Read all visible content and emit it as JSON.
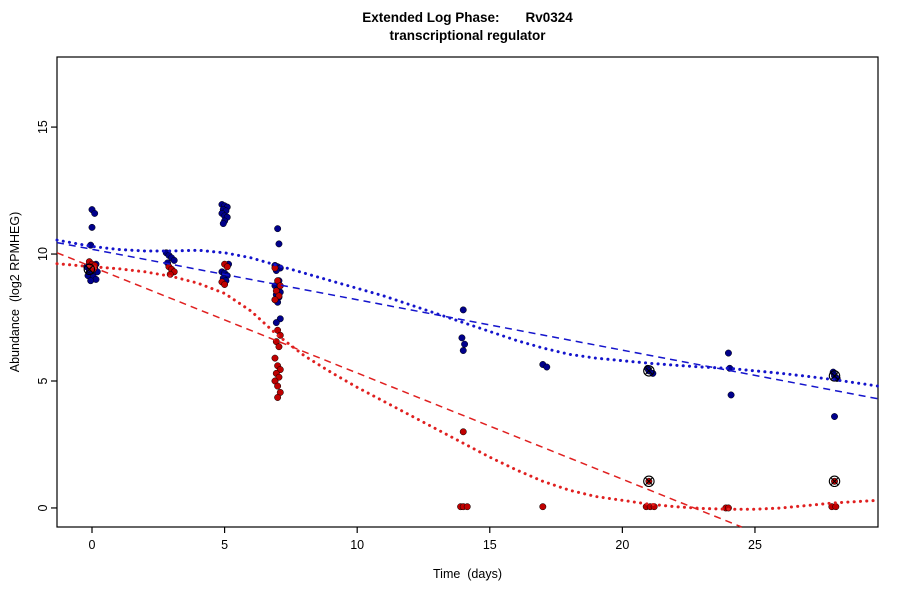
{
  "chart_data": {
    "type": "scatter",
    "title": {
      "prefix": "Extended Log Phase:",
      "gene": "Rv0324",
      "subtitle": "transcriptional regulator"
    },
    "xlabel": "Time  (days)",
    "ylabel": "Abundance  (log2 RPMHEG)",
    "x_ticks": [
      0,
      5,
      10,
      15,
      20,
      25
    ],
    "y_ticks": [
      0,
      5,
      10,
      15
    ],
    "xlim": [
      -1.32,
      29.64
    ],
    "ylim": [
      -0.75,
      17.76
    ],
    "grid": false,
    "legend": "none",
    "series": [
      {
        "name": "blue-series",
        "marker": "filled-circle",
        "color": "#00008B",
        "points": [
          [
            0,
            11.75
          ],
          [
            0.1,
            11.6
          ],
          [
            0,
            11.05
          ],
          [
            -0.05,
            10.35
          ],
          [
            0.15,
            9.6
          ],
          [
            -0.2,
            9.5
          ],
          [
            0,
            9.5
          ],
          [
            0.1,
            9.45
          ],
          [
            -0.1,
            9.35
          ],
          [
            0.2,
            9.3
          ],
          [
            0,
            9.25
          ],
          [
            -0.15,
            9.15
          ],
          [
            0.05,
            9.1
          ],
          [
            0.15,
            9.0
          ],
          [
            -0.05,
            8.95
          ],
          [
            2.8,
            10.05
          ],
          [
            2.9,
            9.95
          ],
          [
            3.0,
            9.85
          ],
          [
            3.1,
            9.75
          ],
          [
            2.85,
            9.65
          ],
          [
            4.9,
            11.95
          ],
          [
            5.0,
            11.9
          ],
          [
            5.1,
            11.85
          ],
          [
            4.95,
            11.75
          ],
          [
            5.05,
            11.7
          ],
          [
            4.9,
            11.6
          ],
          [
            5.0,
            11.5
          ],
          [
            5.1,
            11.45
          ],
          [
            5.0,
            11.3
          ],
          [
            4.95,
            11.2
          ],
          [
            5.15,
            9.6
          ],
          [
            4.9,
            9.3
          ],
          [
            5.0,
            9.25
          ],
          [
            5.1,
            9.15
          ],
          [
            4.95,
            9.05
          ],
          [
            5.05,
            8.95
          ],
          [
            7.0,
            11.0
          ],
          [
            7.05,
            10.4
          ],
          [
            6.9,
            9.55
          ],
          [
            7.0,
            9.5
          ],
          [
            7.1,
            9.45
          ],
          [
            6.95,
            9.35
          ],
          [
            7.05,
            8.95
          ],
          [
            6.9,
            8.75
          ],
          [
            7.0,
            8.6
          ],
          [
            7.1,
            8.5
          ],
          [
            6.95,
            8.4
          ],
          [
            7.05,
            8.3
          ],
          [
            6.9,
            8.2
          ],
          [
            7.0,
            8.1
          ],
          [
            7.1,
            7.45
          ],
          [
            6.95,
            7.3
          ],
          [
            14.0,
            7.8
          ],
          [
            13.95,
            6.7
          ],
          [
            14.05,
            6.45
          ],
          [
            14.0,
            6.2
          ],
          [
            17.0,
            5.65
          ],
          [
            17.15,
            5.55
          ],
          [
            20.95,
            5.5
          ],
          [
            21.0,
            5.4
          ],
          [
            21.15,
            5.3
          ],
          [
            24.0,
            6.1
          ],
          [
            24.05,
            5.5
          ],
          [
            24.1,
            4.45
          ],
          [
            27.95,
            5.35
          ],
          [
            28.0,
            5.2
          ],
          [
            28.1,
            5.1
          ],
          [
            28.0,
            3.6
          ]
        ]
      },
      {
        "name": "red-series",
        "marker": "filled-circle",
        "color": "#C00000",
        "points": [
          [
            -0.1,
            9.7
          ],
          [
            0.0,
            9.6
          ],
          [
            0.1,
            9.55
          ],
          [
            -0.05,
            9.45
          ],
          [
            0.05,
            9.4
          ],
          [
            2.9,
            9.5
          ],
          [
            3.0,
            9.4
          ],
          [
            3.1,
            9.3
          ],
          [
            2.95,
            9.2
          ],
          [
            5.0,
            9.6
          ],
          [
            5.1,
            9.5
          ],
          [
            4.9,
            8.9
          ],
          [
            5.0,
            8.8
          ],
          [
            6.9,
            9.45
          ],
          [
            7.0,
            8.95
          ],
          [
            7.1,
            8.75
          ],
          [
            6.95,
            8.55
          ],
          [
            7.05,
            8.35
          ],
          [
            6.9,
            8.2
          ],
          [
            7.0,
            7.0
          ],
          [
            7.1,
            6.8
          ],
          [
            6.95,
            6.55
          ],
          [
            7.05,
            6.35
          ],
          [
            6.9,
            5.9
          ],
          [
            7.0,
            5.6
          ],
          [
            7.1,
            5.45
          ],
          [
            6.95,
            5.3
          ],
          [
            7.05,
            5.15
          ],
          [
            6.9,
            5.0
          ],
          [
            7.0,
            4.8
          ],
          [
            7.1,
            4.55
          ],
          [
            7.0,
            4.35
          ],
          [
            14.0,
            3.0
          ],
          [
            13.9,
            0.05
          ],
          [
            14.0,
            0.05
          ],
          [
            14.15,
            0.05
          ],
          [
            17.0,
            0.05
          ],
          [
            21.0,
            1.05
          ],
          [
            20.9,
            0.05
          ],
          [
            21.05,
            0.05
          ],
          [
            21.2,
            0.05
          ],
          [
            23.9,
            0.0
          ],
          [
            24.0,
            0.0
          ],
          [
            28.0,
            1.05
          ],
          [
            27.9,
            0.05
          ],
          [
            28.05,
            0.05
          ]
        ]
      }
    ],
    "curves": [
      {
        "name": "blue-linear-trend",
        "style": "dashed",
        "color": "#1414CC",
        "points": [
          [
            -1.32,
            10.45
          ],
          [
            29.64,
            4.3
          ]
        ]
      },
      {
        "name": "blue-smooth-trend",
        "style": "dotted",
        "color": "#1414CC",
        "points": [
          [
            -1.32,
            10.55
          ],
          [
            0,
            10.3
          ],
          [
            1,
            10.18
          ],
          [
            2,
            10.12
          ],
          [
            3,
            10.12
          ],
          [
            4,
            10.15
          ],
          [
            5,
            10.05
          ],
          [
            6,
            9.85
          ],
          [
            7,
            9.55
          ],
          [
            8,
            9.25
          ],
          [
            9,
            8.95
          ],
          [
            10,
            8.65
          ],
          [
            11,
            8.35
          ],
          [
            12,
            8.0
          ],
          [
            13,
            7.65
          ],
          [
            14,
            7.3
          ],
          [
            15,
            6.95
          ],
          [
            16,
            6.6
          ],
          [
            17,
            6.3
          ],
          [
            18,
            6.05
          ],
          [
            19,
            5.9
          ],
          [
            20,
            5.8
          ],
          [
            21,
            5.7
          ],
          [
            22,
            5.62
          ],
          [
            23,
            5.55
          ],
          [
            24,
            5.5
          ],
          [
            25,
            5.4
          ],
          [
            26,
            5.3
          ],
          [
            27,
            5.18
          ],
          [
            28,
            5.05
          ],
          [
            29.64,
            4.8
          ]
        ]
      },
      {
        "name": "red-linear-trend",
        "style": "dashed",
        "color": "#E02020",
        "points": [
          [
            -1.32,
            10.05
          ],
          [
            24.5,
            -0.75
          ]
        ]
      },
      {
        "name": "red-smooth-trend",
        "style": "dotted",
        "color": "#E02020",
        "points": [
          [
            -1.32,
            9.62
          ],
          [
            0,
            9.5
          ],
          [
            1,
            9.42
          ],
          [
            2,
            9.3
          ],
          [
            3,
            9.12
          ],
          [
            4,
            8.85
          ],
          [
            5,
            8.45
          ],
          [
            6,
            7.75
          ],
          [
            7,
            6.8
          ],
          [
            8,
            6.0
          ],
          [
            9,
            5.35
          ],
          [
            10,
            4.75
          ],
          [
            11,
            4.2
          ],
          [
            12,
            3.65
          ],
          [
            13,
            3.1
          ],
          [
            14,
            2.55
          ],
          [
            15,
            2.0
          ],
          [
            16,
            1.5
          ],
          [
            17,
            1.05
          ],
          [
            18,
            0.7
          ],
          [
            19,
            0.45
          ],
          [
            20,
            0.3
          ],
          [
            21,
            0.15
          ],
          [
            22,
            0.05
          ],
          [
            23,
            -0.02
          ],
          [
            24,
            -0.05
          ],
          [
            25,
            -0.05
          ],
          [
            26,
            0.0
          ],
          [
            27,
            0.1
          ],
          [
            28,
            0.2
          ],
          [
            29.64,
            0.3
          ]
        ]
      }
    ],
    "flagged_points": {
      "marker": "circle-x",
      "color": "#000000",
      "points": [
        [
          -0.1,
          9.4
        ],
        [
          21,
          5.4
        ],
        [
          21,
          1.05
        ],
        [
          28,
          5.2
        ],
        [
          28,
          1.05
        ]
      ]
    }
  }
}
